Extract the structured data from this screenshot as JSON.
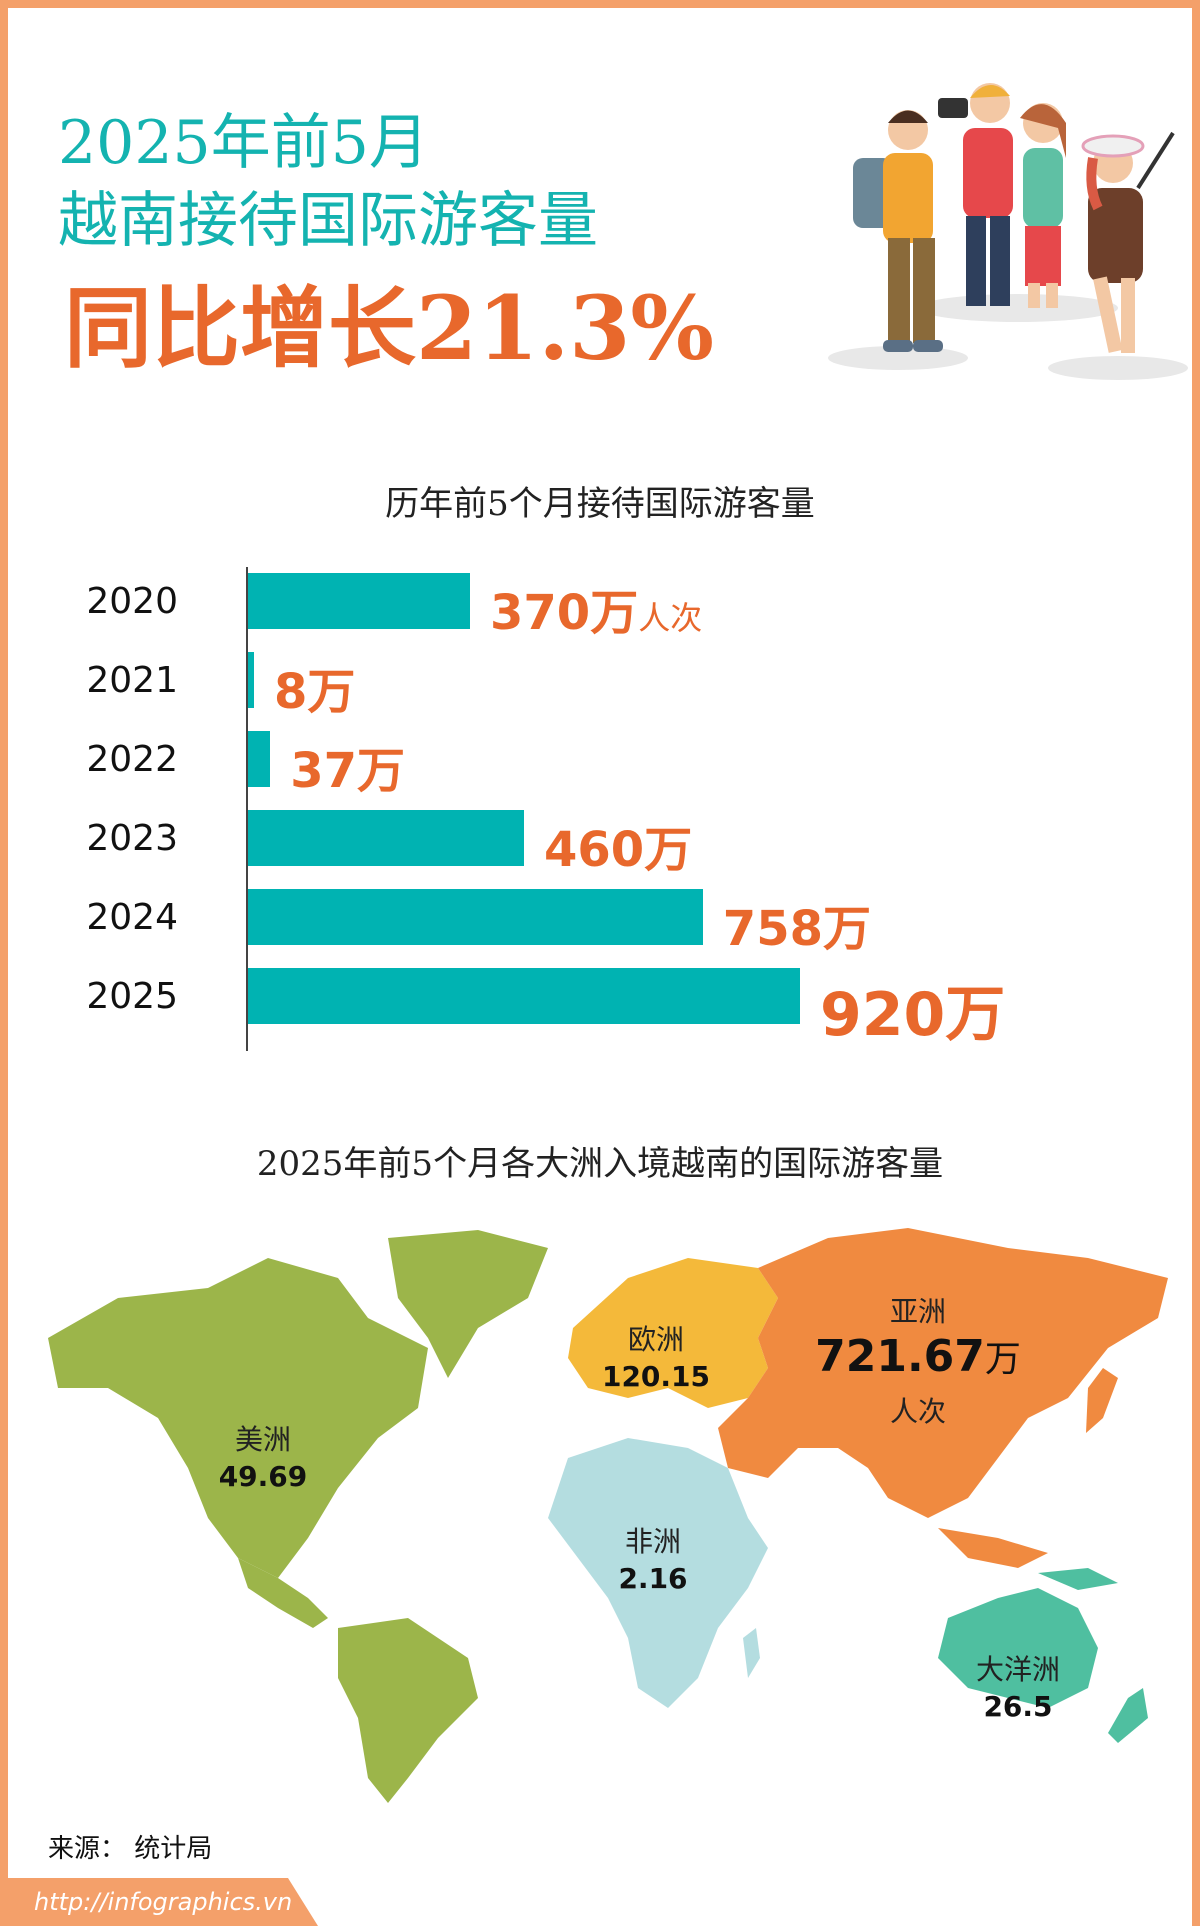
{
  "header": {
    "title_line1": "2025年前5月",
    "title_line2": "越南接待国际游客量",
    "title_line3": "同比增长21.3%"
  },
  "bar_section": {
    "title": "历年前5个月接待国际游客量"
  },
  "map_section": {
    "title": "2025年前5个月各大洲入境越南的国际游客量",
    "regions": {
      "america": {
        "name": "美洲",
        "value": "49.69"
      },
      "europe": {
        "name": "欧洲",
        "value": "120.15"
      },
      "asia": {
        "name": "亚洲",
        "value": "721.67",
        "unit": "万",
        "unit2": "人次"
      },
      "africa": {
        "name": "非洲",
        "value": "2.16"
      },
      "oceania": {
        "name": "大洋洲",
        "value": "26.5"
      }
    }
  },
  "source": "来源： 统计局",
  "footer": {
    "url": "http://infographics.vn"
  },
  "colors": {
    "teal": "#00b3b2",
    "orange": "#e8682c",
    "border": "#f4a06a",
    "america": "#9cb54a",
    "europe": "#f4b93a",
    "asia": "#f08a40",
    "africa": "#b4dde0",
    "oceania": "#4fbfa0"
  },
  "chart_data": [
    {
      "type": "bar",
      "orientation": "horizontal",
      "title": "历年前5个月接待国际游客量",
      "categories": [
        "2020",
        "2021",
        "2022",
        "2023",
        "2024",
        "2025"
      ],
      "values": [
        370,
        8,
        37,
        460,
        758,
        920
      ],
      "value_labels": [
        "370万",
        "8万",
        "37万",
        "460万",
        "758万",
        "920万"
      ],
      "first_label_unit": "人次",
      "xlim": [
        0,
        1000
      ]
    },
    {
      "type": "map",
      "title": "2025年前5个月各大洲入境越南的国际游客量",
      "categories": [
        "美洲",
        "欧洲",
        "亚洲",
        "非洲",
        "大洋洲"
      ],
      "values": [
        49.69,
        120.15,
        721.67,
        2.16,
        26.5
      ]
    }
  ]
}
